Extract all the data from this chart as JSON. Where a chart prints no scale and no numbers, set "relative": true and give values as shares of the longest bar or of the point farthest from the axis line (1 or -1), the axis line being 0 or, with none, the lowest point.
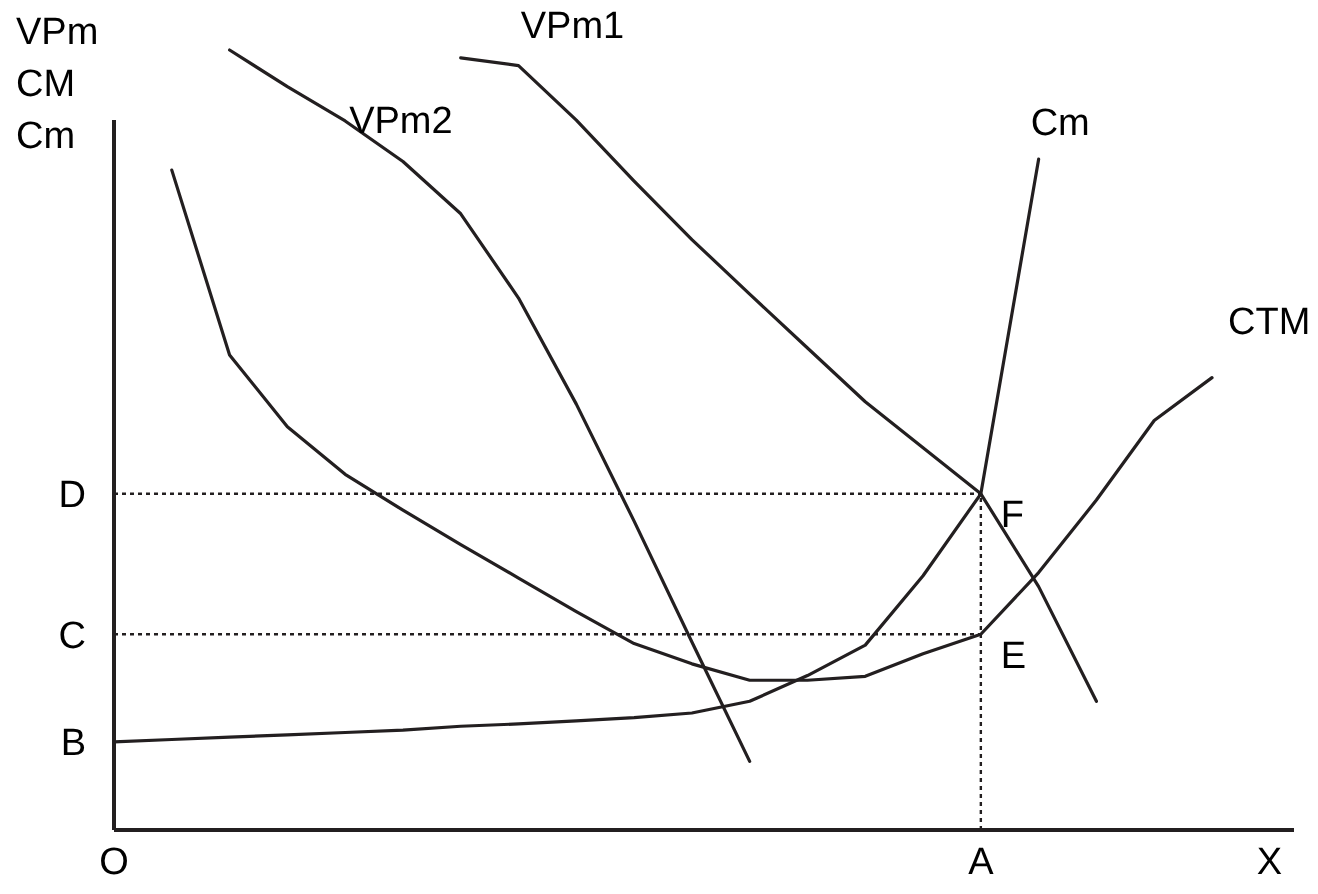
{
  "chart_data": {
    "type": "line",
    "relative": true,
    "xlabel": "X",
    "ylabel": "VPm CM Cm",
    "marker": "none",
    "line_style": "solid",
    "categories": [
      "O",
      null,
      null,
      null,
      null,
      null,
      null,
      null,
      null,
      null,
      null,
      null,
      null,
      null,
      null,
      "A",
      null,
      null,
      null,
      null
    ],
    "series": [
      {
        "name": "VPm1",
        "color": "#231f20",
        "values": [
          null,
          null,
          null,
          null,
          null,
          null,
          0.99,
          0.98,
          0.91,
          0.832,
          0.757,
          0.687,
          0.618,
          0.549,
          0.49,
          0.431,
          0.312,
          0.165,
          null,
          null
        ]
      },
      {
        "name": "VPm2",
        "color": "#231f20",
        "values": [
          null,
          null,
          1,
          0.953,
          0.909,
          0.857,
          0.79,
          0.682,
          0.546,
          0.396,
          0.241,
          0.088,
          null,
          null,
          null,
          null,
          null,
          null,
          null,
          null
        ]
      },
      {
        "name": "Cm",
        "color": "#231f20",
        "values": [
          0.113,
          0.116,
          0.119,
          0.122,
          0.125,
          0.128,
          0.133,
          0.136,
          0.14,
          0.144,
          0.15,
          0.165,
          0.198,
          0.237,
          0.326,
          0.431,
          0.86,
          null,
          null,
          null
        ]
      },
      {
        "name": "CTM",
        "color": "#231f20",
        "values": [
          null,
          0.846,
          0.609,
          0.517,
          0.456,
          0.41,
          0.366,
          0.323,
          0.28,
          0.239,
          0.213,
          0.192,
          0.192,
          0.197,
          0.226,
          0.251,
          0.33,
          0.423,
          0.525,
          0.58
        ]
      }
    ],
    "ref_lines": [
      {
        "axis": "y",
        "value": 0.431,
        "label": "D",
        "line_style": "dotted"
      },
      {
        "axis": "y",
        "value": 0.251,
        "label": "C",
        "line_style": "dotted"
      },
      {
        "axis": "x",
        "value": "A",
        "line_style": "dotted"
      }
    ],
    "annotations": [
      {
        "text": "F",
        "x": "A",
        "y": 0.431
      },
      {
        "text": "E",
        "x": "A",
        "y": 0.251
      },
      {
        "text": "B",
        "x": "O",
        "y": 0.113
      }
    ]
  }
}
